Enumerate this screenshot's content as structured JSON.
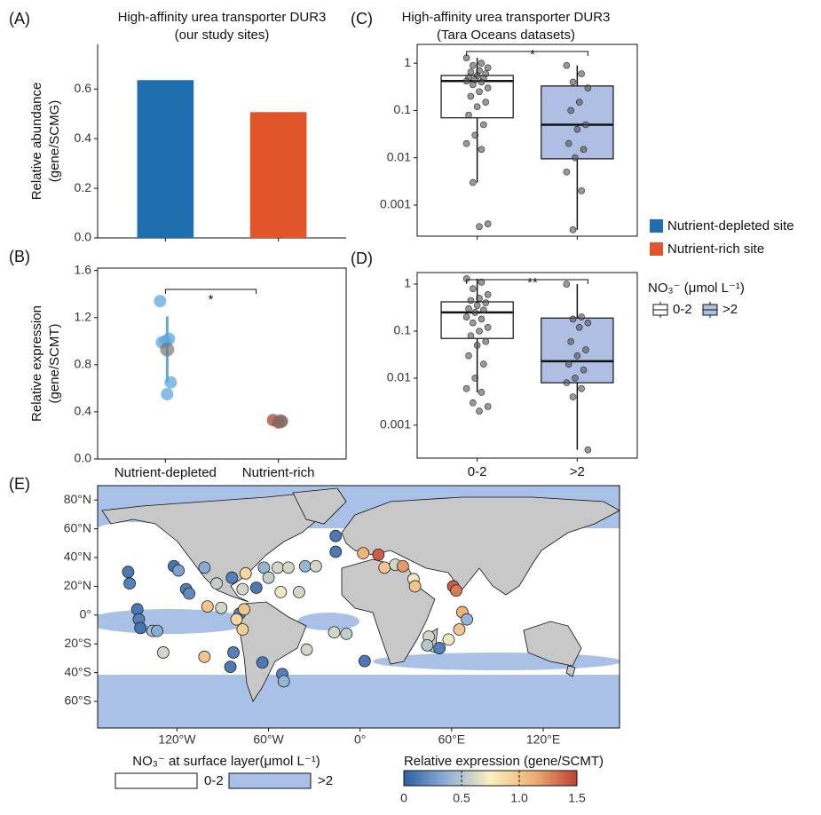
{
  "chart_data": [
    {
      "type": "bar",
      "panel_label": "(A)",
      "title": "High-affinity urea transporter DUR3",
      "subtitle": "(our study sites)",
      "ylabel": [
        "Relative abundance",
        "(gene/SCMG)"
      ],
      "categories": [
        null,
        null
      ],
      "values": [
        0.636,
        0.507
      ],
      "colors": [
        "#1f6fb0",
        "#e1552b"
      ],
      "ylim": [
        0,
        0.78
      ],
      "yticks": [
        {
          "value": 0,
          "label": "0.0"
        },
        0.2,
        0.4,
        0.6
      ],
      "legend": {
        "entries": [
          "Nutrient-depleted site",
          "Nutrient-rich site"
        ]
      }
    },
    {
      "type": "dot",
      "panel_label": "(B)",
      "ylabel": [
        "Relative expression",
        "(gene/SCMT)"
      ],
      "categories": [
        "Nutrient-depleted",
        "Nutrient-rich"
      ],
      "points": [
        [
          1.34,
          1.02,
          1.0,
          0.99,
          0.65,
          0.55
        ],
        [
          0.33,
          0.32,
          0.31
        ]
      ],
      "means": [
        0.93,
        0.32
      ],
      "errors": [
        0.28,
        0.01
      ],
      "colors": [
        "#5fa8dc",
        "#a7452e"
      ],
      "mean_color": "#777777",
      "significance": "*",
      "ylim": [
        0,
        1.62
      ],
      "yticks": [
        {
          "value": 0,
          "label": "0.0"
        },
        0.4,
        0.8,
        1.2,
        1.6
      ]
    },
    {
      "type": "box",
      "panel_label": "(C)",
      "title": "High-affinity urea transporter DUR3",
      "subtitle": "(Tara Oceans datasets)",
      "categories": [
        null,
        null
      ],
      "log_scale": true,
      "boxes": [
        {
          "low": 0.003,
          "q1": 0.07,
          "median": 0.42,
          "q3": 0.55,
          "high": 1.3
        },
        {
          "low": 0.0003,
          "q1": 0.0095,
          "median": 0.05,
          "q3": 0.33,
          "high": 0.9
        }
      ],
      "points": [
        [
          1.3,
          1.0,
          0.9,
          0.8,
          0.7,
          0.65,
          0.6,
          0.55,
          0.5,
          0.48,
          0.45,
          0.42,
          0.4,
          0.35,
          0.3,
          0.25,
          0.2,
          0.15,
          0.12,
          0.08,
          0.05,
          0.03,
          0.02,
          0.015,
          0.003,
          0.0004,
          0.00035
        ],
        [
          0.9,
          0.6,
          0.4,
          0.3,
          0.15,
          0.1,
          0.05,
          0.04,
          0.02,
          0.015,
          0.01,
          0.005,
          0.002,
          0.0003
        ]
      ],
      "colors": [
        "#ffffff",
        "#aebfe3"
      ],
      "significance": "*",
      "ylim": [
        0.00022,
        2.5
      ],
      "yticks": [
        0.001,
        0.01,
        0.1,
        1
      ]
    },
    {
      "type": "box",
      "panel_label": "(D)",
      "categories": [
        "0-2",
        ">2"
      ],
      "log_scale": true,
      "boxes": [
        {
          "low": 0.005,
          "q1": 0.07,
          "median": 0.25,
          "q3": 0.42,
          "high": 1.3
        },
        {
          "low": 0.0003,
          "q1": 0.008,
          "median": 0.023,
          "q3": 0.19,
          "high": 1.0
        }
      ],
      "points": [
        [
          1.3,
          1.1,
          0.8,
          0.6,
          0.5,
          0.45,
          0.4,
          0.35,
          0.3,
          0.28,
          0.25,
          0.2,
          0.18,
          0.15,
          0.12,
          0.1,
          0.08,
          0.06,
          0.05,
          0.03,
          0.02,
          0.01,
          0.006,
          0.005,
          0.003,
          0.0025,
          0.002
        ],
        [
          1.0,
          0.2,
          0.18,
          0.15,
          0.12,
          0.06,
          0.04,
          0.03,
          0.02,
          0.015,
          0.01,
          0.008,
          0.006,
          0.004,
          0.0003
        ]
      ],
      "colors": [
        "#ffffff",
        "#aebfe3"
      ],
      "significance": "**",
      "ylim": [
        0.0002,
        1.76
      ],
      "yticks": [
        0.001,
        0.01,
        0.1,
        1
      ],
      "legend": {
        "title": "NO₃⁻ (μmol L⁻¹)",
        "entries": [
          "0-2",
          ">2"
        ]
      }
    },
    {
      "type": "map",
      "panel_label": "(E)",
      "xlim": [
        -172,
        170
      ],
      "ylim": [
        -78.5,
        90
      ],
      "xticks": [
        {
          "value": -120,
          "label": "120°W"
        },
        {
          "value": -60,
          "label": "60°W"
        },
        {
          "value": 0,
          "label": "0°"
        },
        {
          "value": 60,
          "label": "60°E"
        },
        {
          "value": 120,
          "label": "120°E"
        }
      ],
      "yticks": [
        {
          "value": 80,
          "label": "80°N"
        },
        {
          "value": 60,
          "label": "60°N"
        },
        {
          "value": 40,
          "label": "40°N"
        },
        {
          "value": 20,
          "label": "20°N"
        },
        {
          "value": 0,
          "label": "0°"
        },
        {
          "value": -20,
          "label": "20°S"
        },
        {
          "value": -40,
          "label": "40°S"
        },
        {
          "value": -60,
          "label": "60°S"
        }
      ],
      "points": {
        "lon": [
          -152,
          -151,
          -122,
          -119,
          -114,
          -112,
          -146,
          -145,
          -144,
          -136,
          -133,
          -129,
          -102,
          -102,
          -94,
          -84,
          -77,
          -75,
          -68,
          -63,
          -60,
          -54,
          -47,
          -36,
          -29,
          -52,
          -40,
          -100,
          -91,
          -79,
          -81,
          -77,
          -76,
          -83,
          -85,
          -64,
          -51,
          -50,
          -35,
          -17,
          -9,
          3,
          -16,
          -16,
          2,
          12,
          16,
          23,
          28,
          35,
          36,
          61,
          63,
          67,
          70,
          65,
          45,
          44,
          58,
          52
        ],
        "lat": [
          30,
          22,
          34,
          31,
          18,
          15,
          4,
          -3,
          -9,
          -11,
          -11,
          -26,
          -29,
          33,
          22,
          26,
          18,
          29,
          19,
          33,
          26,
          33,
          33,
          34,
          34,
          16,
          16,
          6,
          5,
          1,
          -3,
          -10,
          4,
          -26,
          -36,
          -33,
          -41,
          -46,
          -24,
          -12,
          -13,
          -32,
          55,
          44,
          43,
          42,
          33,
          35,
          34,
          25,
          20,
          20,
          17,
          2,
          -3,
          -10,
          -15,
          -21,
          -17,
          -23
        ],
        "values": [
          0.12,
          0.15,
          0.1,
          0.3,
          0.15,
          0.2,
          0.12,
          0.15,
          0.1,
          0.45,
          0.35,
          0.6,
          1.0,
          0.35,
          0.55,
          0.15,
          0.6,
          0.9,
          0.12,
          0.4,
          0.55,
          0.6,
          0.6,
          0.4,
          0.6,
          0.7,
          0.6,
          1.0,
          0.6,
          0.15,
          0.9,
          0.95,
          1.0,
          0.15,
          0.12,
          0.12,
          0.15,
          0.4,
          0.6,
          0.6,
          0.55,
          0.12,
          0.12,
          0.12,
          1.1,
          1.4,
          1.0,
          0.6,
          1.2,
          0.7,
          1.0,
          1.4,
          1.3,
          1.1,
          0.4,
          1.0,
          0.6,
          0.5,
          0.7,
          0.15
        ]
      },
      "colorbar": {
        "title": "Relative expression (gene/SCMT)",
        "lim": [
          0,
          1.5
        ],
        "ticks": [
          0,
          0.5,
          {
            "value": 1,
            "label": "1.0"
          },
          1.5
        ],
        "colors": [
          "#2c5fa5",
          "#8fb1d6",
          "#fbf0bf",
          "#eeb075",
          "#bf3f36"
        ]
      },
      "no3_legend": {
        "title": "NO₃⁻ at surface layer(μmol L⁻¹)",
        "entries": [
          "0-2",
          ">2"
        ],
        "colors": [
          "#ffffff",
          "#a9c1e6"
        ]
      }
    }
  ]
}
